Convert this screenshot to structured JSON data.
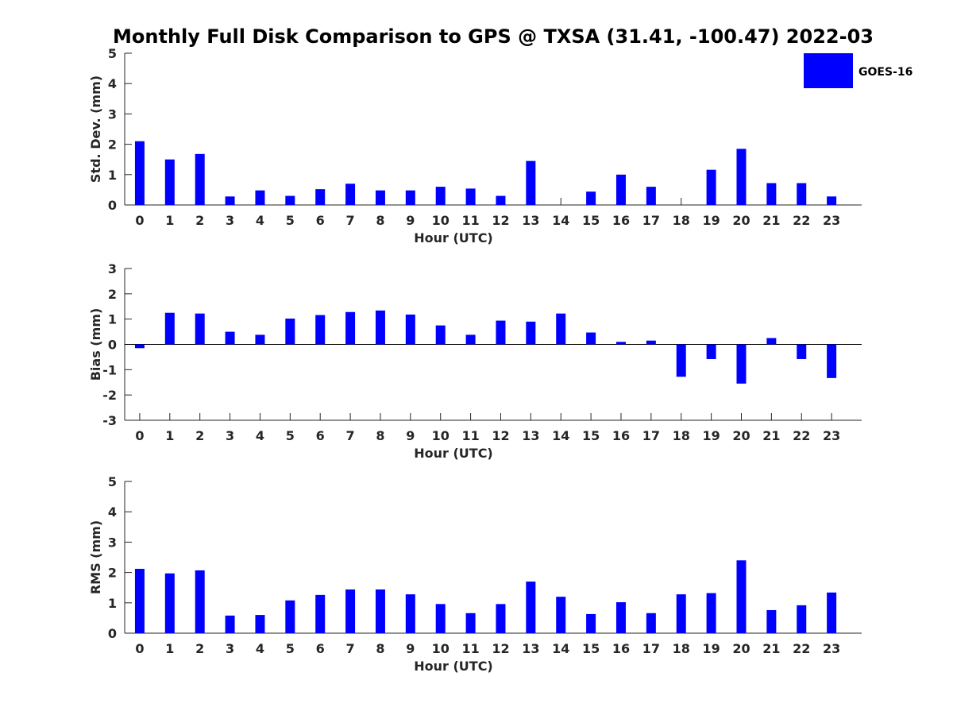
{
  "title": "Monthly Full Disk Comparison to GPS @ TXSA (31.41, -100.47) 2022-03",
  "legend": {
    "label": "GOES-16",
    "color": "#0000FF",
    "position": "top-right"
  },
  "chart_data": [
    {
      "type": "bar",
      "name": "std-dev",
      "xlabel": "Hour (UTC)",
      "ylabel": "Std. Dev. (mm)",
      "ylim": [
        0,
        5
      ],
      "yticks": [
        0,
        1,
        2,
        3,
        4,
        5
      ],
      "grid": false,
      "categories": [
        "0",
        "1",
        "2",
        "3",
        "4",
        "5",
        "6",
        "7",
        "8",
        "9",
        "10",
        "11",
        "12",
        "13",
        "14",
        "15",
        "16",
        "17",
        "18",
        "19",
        "20",
        "21",
        "22",
        "23"
      ],
      "series": [
        {
          "name": "GOES-16",
          "color": "#0000FF",
          "values": [
            2.1,
            1.5,
            1.68,
            0.28,
            0.48,
            0.3,
            0.52,
            0.7,
            0.48,
            0.48,
            0.6,
            0.54,
            0.3,
            1.45,
            0.0,
            0.44,
            1.0,
            0.6,
            0.0,
            1.16,
            1.85,
            0.72,
            0.72,
            0.28
          ]
        }
      ]
    },
    {
      "type": "bar",
      "name": "bias",
      "xlabel": "Hour (UTC)",
      "ylabel": "Bias (mm)",
      "ylim": [
        -3,
        3
      ],
      "yticks": [
        -3,
        -2,
        -1,
        0,
        1,
        2,
        3
      ],
      "grid": false,
      "categories": [
        "0",
        "1",
        "2",
        "3",
        "4",
        "5",
        "6",
        "7",
        "8",
        "9",
        "10",
        "11",
        "12",
        "13",
        "14",
        "15",
        "16",
        "17",
        "18",
        "19",
        "20",
        "21",
        "22",
        "23"
      ],
      "series": [
        {
          "name": "GOES-16",
          "color": "#0000FF",
          "values": [
            -0.15,
            1.25,
            1.22,
            0.5,
            0.38,
            1.02,
            1.16,
            1.28,
            1.34,
            1.18,
            0.75,
            0.38,
            0.94,
            0.9,
            1.22,
            0.47,
            0.1,
            0.15,
            -1.28,
            -0.58,
            -1.55,
            0.25,
            -0.58,
            -1.33
          ]
        }
      ]
    },
    {
      "type": "bar",
      "name": "rms",
      "xlabel": "Hour (UTC)",
      "ylabel": "RMS (mm)",
      "ylim": [
        0,
        5
      ],
      "yticks": [
        0,
        1,
        2,
        3,
        4,
        5
      ],
      "grid": false,
      "categories": [
        "0",
        "1",
        "2",
        "3",
        "4",
        "5",
        "6",
        "7",
        "8",
        "9",
        "10",
        "11",
        "12",
        "13",
        "14",
        "15",
        "16",
        "17",
        "18",
        "19",
        "20",
        "21",
        "22",
        "23"
      ],
      "series": [
        {
          "name": "GOES-16",
          "color": "#0000FF",
          "values": [
            2.12,
            1.97,
            2.07,
            0.58,
            0.6,
            1.08,
            1.26,
            1.44,
            1.44,
            1.28,
            0.96,
            0.66,
            0.96,
            1.7,
            1.2,
            0.63,
            1.02,
            0.66,
            1.28,
            1.32,
            2.4,
            0.76,
            0.92,
            1.34
          ]
        }
      ]
    }
  ]
}
